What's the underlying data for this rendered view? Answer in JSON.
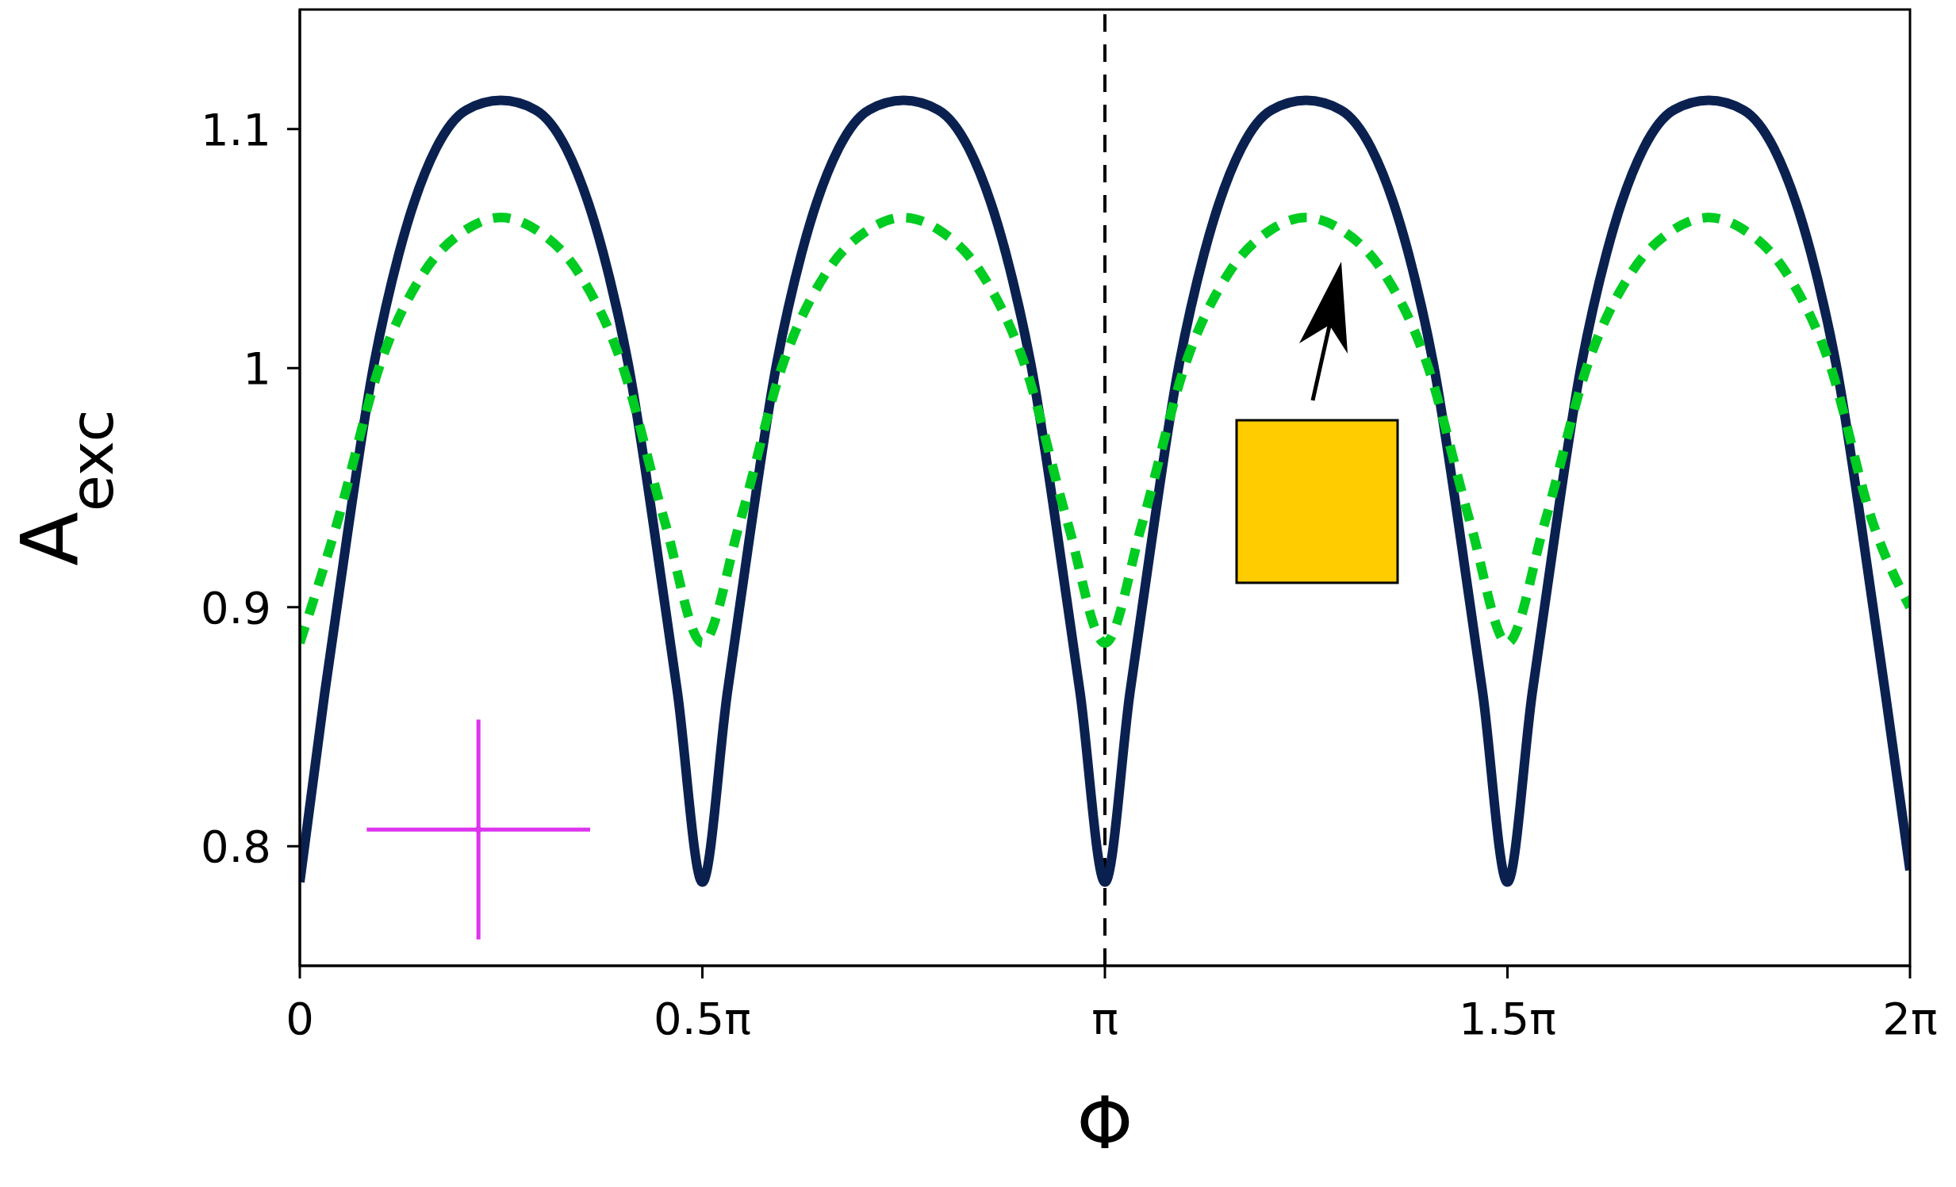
{
  "chart_data": {
    "type": "line",
    "xlabel": "Φ",
    "ylabel": "A$_{exc}$",
    "xlim": [
      0,
      6.2832
    ],
    "ylim": [
      0.75,
      1.15
    ],
    "xticks": [
      0,
      {
        "value": 1.5708,
        "label": "0.5π"
      },
      {
        "value": 3.1416,
        "label": "π"
      },
      {
        "value": 4.7124,
        "label": "1.5π"
      },
      {
        "value": 6.2832,
        "label": "2π"
      }
    ],
    "yticks": [
      0.8,
      0.9,
      1,
      1.1
    ],
    "legend": false,
    "ref_lines": [
      {
        "axis": "x",
        "value": 3.1416,
        "color": "#000000",
        "line_style": "dashed"
      }
    ],
    "series": [
      {
        "color": "#0a2150",
        "line_style": "solid",
        "marker": "none",
        "x": [
          0,
          0.097,
          0.145,
          0.29,
          0.387,
          0.532,
          0.65,
          0.785,
          0.92,
          1.039,
          1.184,
          1.281,
          1.426,
          1.474,
          1.571,
          1.668,
          1.716,
          1.861,
          1.958,
          2.103,
          2.221,
          2.356,
          2.491,
          2.61,
          2.755,
          2.852,
          2.997,
          3.045,
          3.142,
          3.239,
          3.287,
          3.432,
          3.529,
          3.674,
          3.792,
          3.927,
          4.062,
          4.181,
          4.326,
          4.423,
          4.568,
          4.616,
          4.712,
          4.809,
          4.857,
          5.002,
          5.099,
          5.244,
          5.362,
          5.498,
          5.633,
          5.752,
          5.897,
          5.994,
          6.139,
          6.187,
          6.283
        ],
        "values": [
          0.785,
          0.864,
          0.9,
          1.002,
          1.048,
          1.092,
          1.108,
          1.112,
          1.108,
          1.092,
          1.048,
          1.002,
          0.9,
          0.864,
          0.785,
          0.864,
          0.9,
          1.002,
          1.048,
          1.092,
          1.108,
          1.112,
          1.108,
          1.092,
          1.048,
          1.002,
          0.9,
          0.864,
          0.785,
          0.864,
          0.9,
          1.002,
          1.048,
          1.092,
          1.108,
          1.112,
          1.108,
          1.092,
          1.048,
          1.002,
          0.9,
          0.864,
          0.785,
          0.864,
          0.9,
          1.002,
          1.048,
          1.092,
          1.108,
          1.112,
          1.108,
          1.092,
          1.048,
          1.002,
          0.9,
          0.864,
          0.79
        ]
      },
      {
        "color": "#00cc22",
        "line_style": "dashed",
        "marker": "none",
        "x": [
          0,
          0.145,
          0.315,
          0.484,
          0.65,
          0.785,
          0.92,
          1.087,
          1.256,
          1.426,
          1.571,
          1.716,
          1.886,
          2.055,
          2.221,
          2.356,
          2.491,
          2.658,
          2.827,
          2.997,
          3.142,
          3.287,
          3.457,
          3.626,
          3.792,
          3.927,
          4.062,
          4.229,
          4.398,
          4.568,
          4.712,
          4.857,
          5.027,
          5.196,
          5.362,
          5.498,
          5.633,
          5.8,
          5.969,
          6.139,
          6.283
        ],
        "values": [
          0.885,
          0.935,
          1.002,
          1.04,
          1.058,
          1.063,
          1.058,
          1.04,
          1.002,
          0.935,
          0.885,
          0.935,
          1.002,
          1.04,
          1.058,
          1.063,
          1.058,
          1.04,
          1.002,
          0.935,
          0.885,
          0.935,
          1.002,
          1.04,
          1.058,
          1.063,
          1.058,
          1.04,
          1.002,
          0.935,
          0.885,
          0.935,
          1.002,
          1.04,
          1.058,
          1.063,
          1.058,
          1.04,
          1.002,
          0.935,
          0.9
        ]
      },
      {
        "type": "scatter",
        "color": "#dd33ee",
        "x": [
          0.697
        ],
        "values": [
          0.807
        ],
        "errors": [
          [
            0.761,
            0.853
          ]
        ],
        "xerrors": [
          [
            0.261,
            1.133
          ]
        ]
      }
    ]
  }
}
